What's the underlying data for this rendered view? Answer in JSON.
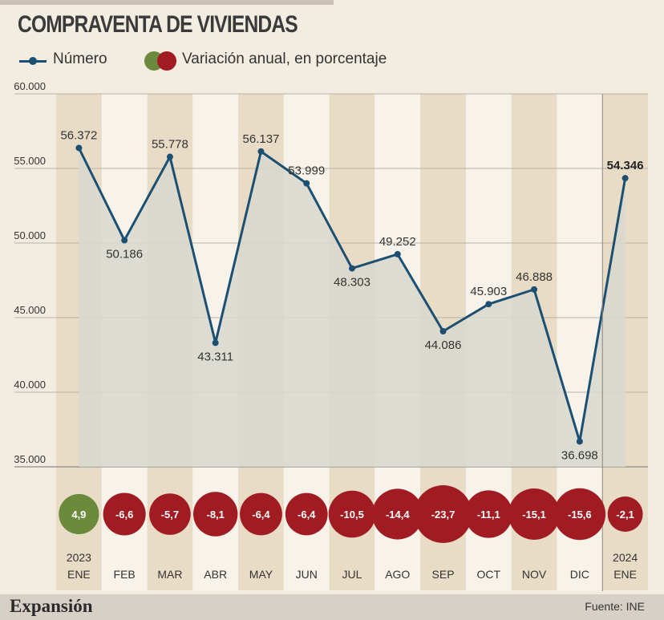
{
  "chart_data": {
    "type": "line",
    "title": "COMPRAVENTA DE VIVIENDAS",
    "legend": [
      "Número",
      "Variación anual, en porcentaje"
    ],
    "categories": [
      "ENE",
      "FEB",
      "MAR",
      "ABR",
      "MAY",
      "JUN",
      "JUL",
      "AGO",
      "SEP",
      "OCT",
      "NOV",
      "DIC",
      "ENE"
    ],
    "year_labels": [
      "2023",
      "",
      "",
      "",
      "",
      "",
      "",
      "",
      "",
      "",
      "",
      "",
      "2024"
    ],
    "y_ticks": [
      "60.000",
      "55.000",
      "50.000",
      "45.000",
      "40.000",
      "35.000"
    ],
    "ylim": [
      35000,
      60000
    ],
    "grid": true,
    "series": [
      {
        "name": "Número",
        "values": [
          56372,
          50186,
          55778,
          43311,
          56137,
          53999,
          48303,
          49252,
          44086,
          45903,
          46888,
          36698,
          54346
        ],
        "labels": [
          "56.372",
          "50.186",
          "55.778",
          "43.311",
          "56.137",
          "53.999",
          "48.303",
          "49.252",
          "44.086",
          "45.903",
          "46.888",
          "36.698",
          "54.346"
        ]
      },
      {
        "name": "Variación anual, en porcentaje",
        "type": "bubble",
        "values": [
          4.9,
          -6.6,
          -5.7,
          -8.1,
          -6.4,
          -6.4,
          -10.5,
          -14.4,
          -23.7,
          -11.1,
          -15.1,
          -15.6,
          -2.1
        ],
        "labels": [
          "4,9",
          "-6,6",
          "-5,7",
          "-8,1",
          "-6,4",
          "-6,4",
          "-10,5",
          "-14,4",
          "-23,7",
          "-11,1",
          "-15,1",
          "-15,6",
          "-2,1"
        ]
      }
    ],
    "colors": {
      "line": "#1c5073",
      "area": "#d8d8ce",
      "band_dark": "#e8dcc6",
      "band_light": "#f7f2ea",
      "positive": "#6b8a3c",
      "negative": "#a01c22",
      "grid": "#b8b2a8"
    }
  },
  "footer": {
    "brand": "Expansión",
    "source": "Fuente: INE"
  }
}
